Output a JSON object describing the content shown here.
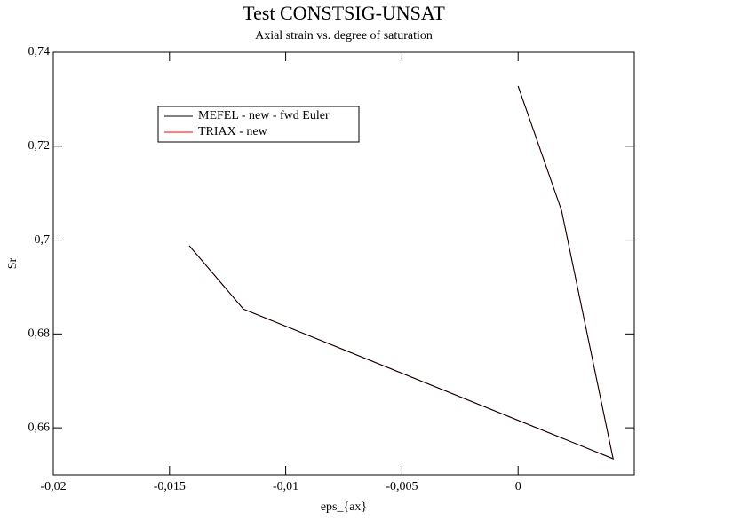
{
  "chart_data": {
    "type": "line",
    "title": "Test CONSTSIG-UNSAT",
    "subtitle": "Axial strain vs. degree of saturation",
    "x_label": "eps_{ax}",
    "y_label": "Sr",
    "xlim": [
      -0.02,
      0.005
    ],
    "ylim": [
      0.65,
      0.74
    ],
    "xticks": [
      {
        "value": -0.02,
        "label": "-0,02"
      },
      {
        "value": -0.015,
        "label": "-0,015"
      },
      {
        "value": -0.01,
        "label": "-0,01"
      },
      {
        "value": -0.005,
        "label": "-0,005"
      },
      0
    ],
    "yticks": [
      {
        "value": 0.66,
        "label": "0,66"
      },
      {
        "value": 0.68,
        "label": "0,68"
      },
      {
        "value": 0.7,
        "label": "0,7"
      },
      {
        "value": 0.72,
        "label": "0,72"
      },
      {
        "value": 0.74,
        "label": "0,74"
      }
    ],
    "x": [
      0,
      0.00187,
      0.00409,
      -0.01182,
      -0.01415
    ],
    "series": [
      {
        "name": "MEFEL - new - fwd Euler",
        "color": "#000000",
        "values": [
          0.7328,
          0.7063,
          0.6534,
          0.6853,
          0.6988
        ]
      },
      {
        "name": "TRIAX - new",
        "color": "#ff0000",
        "values": [
          0.7328,
          0.7063,
          0.6534,
          0.6853,
          0.6988
        ]
      }
    ]
  }
}
